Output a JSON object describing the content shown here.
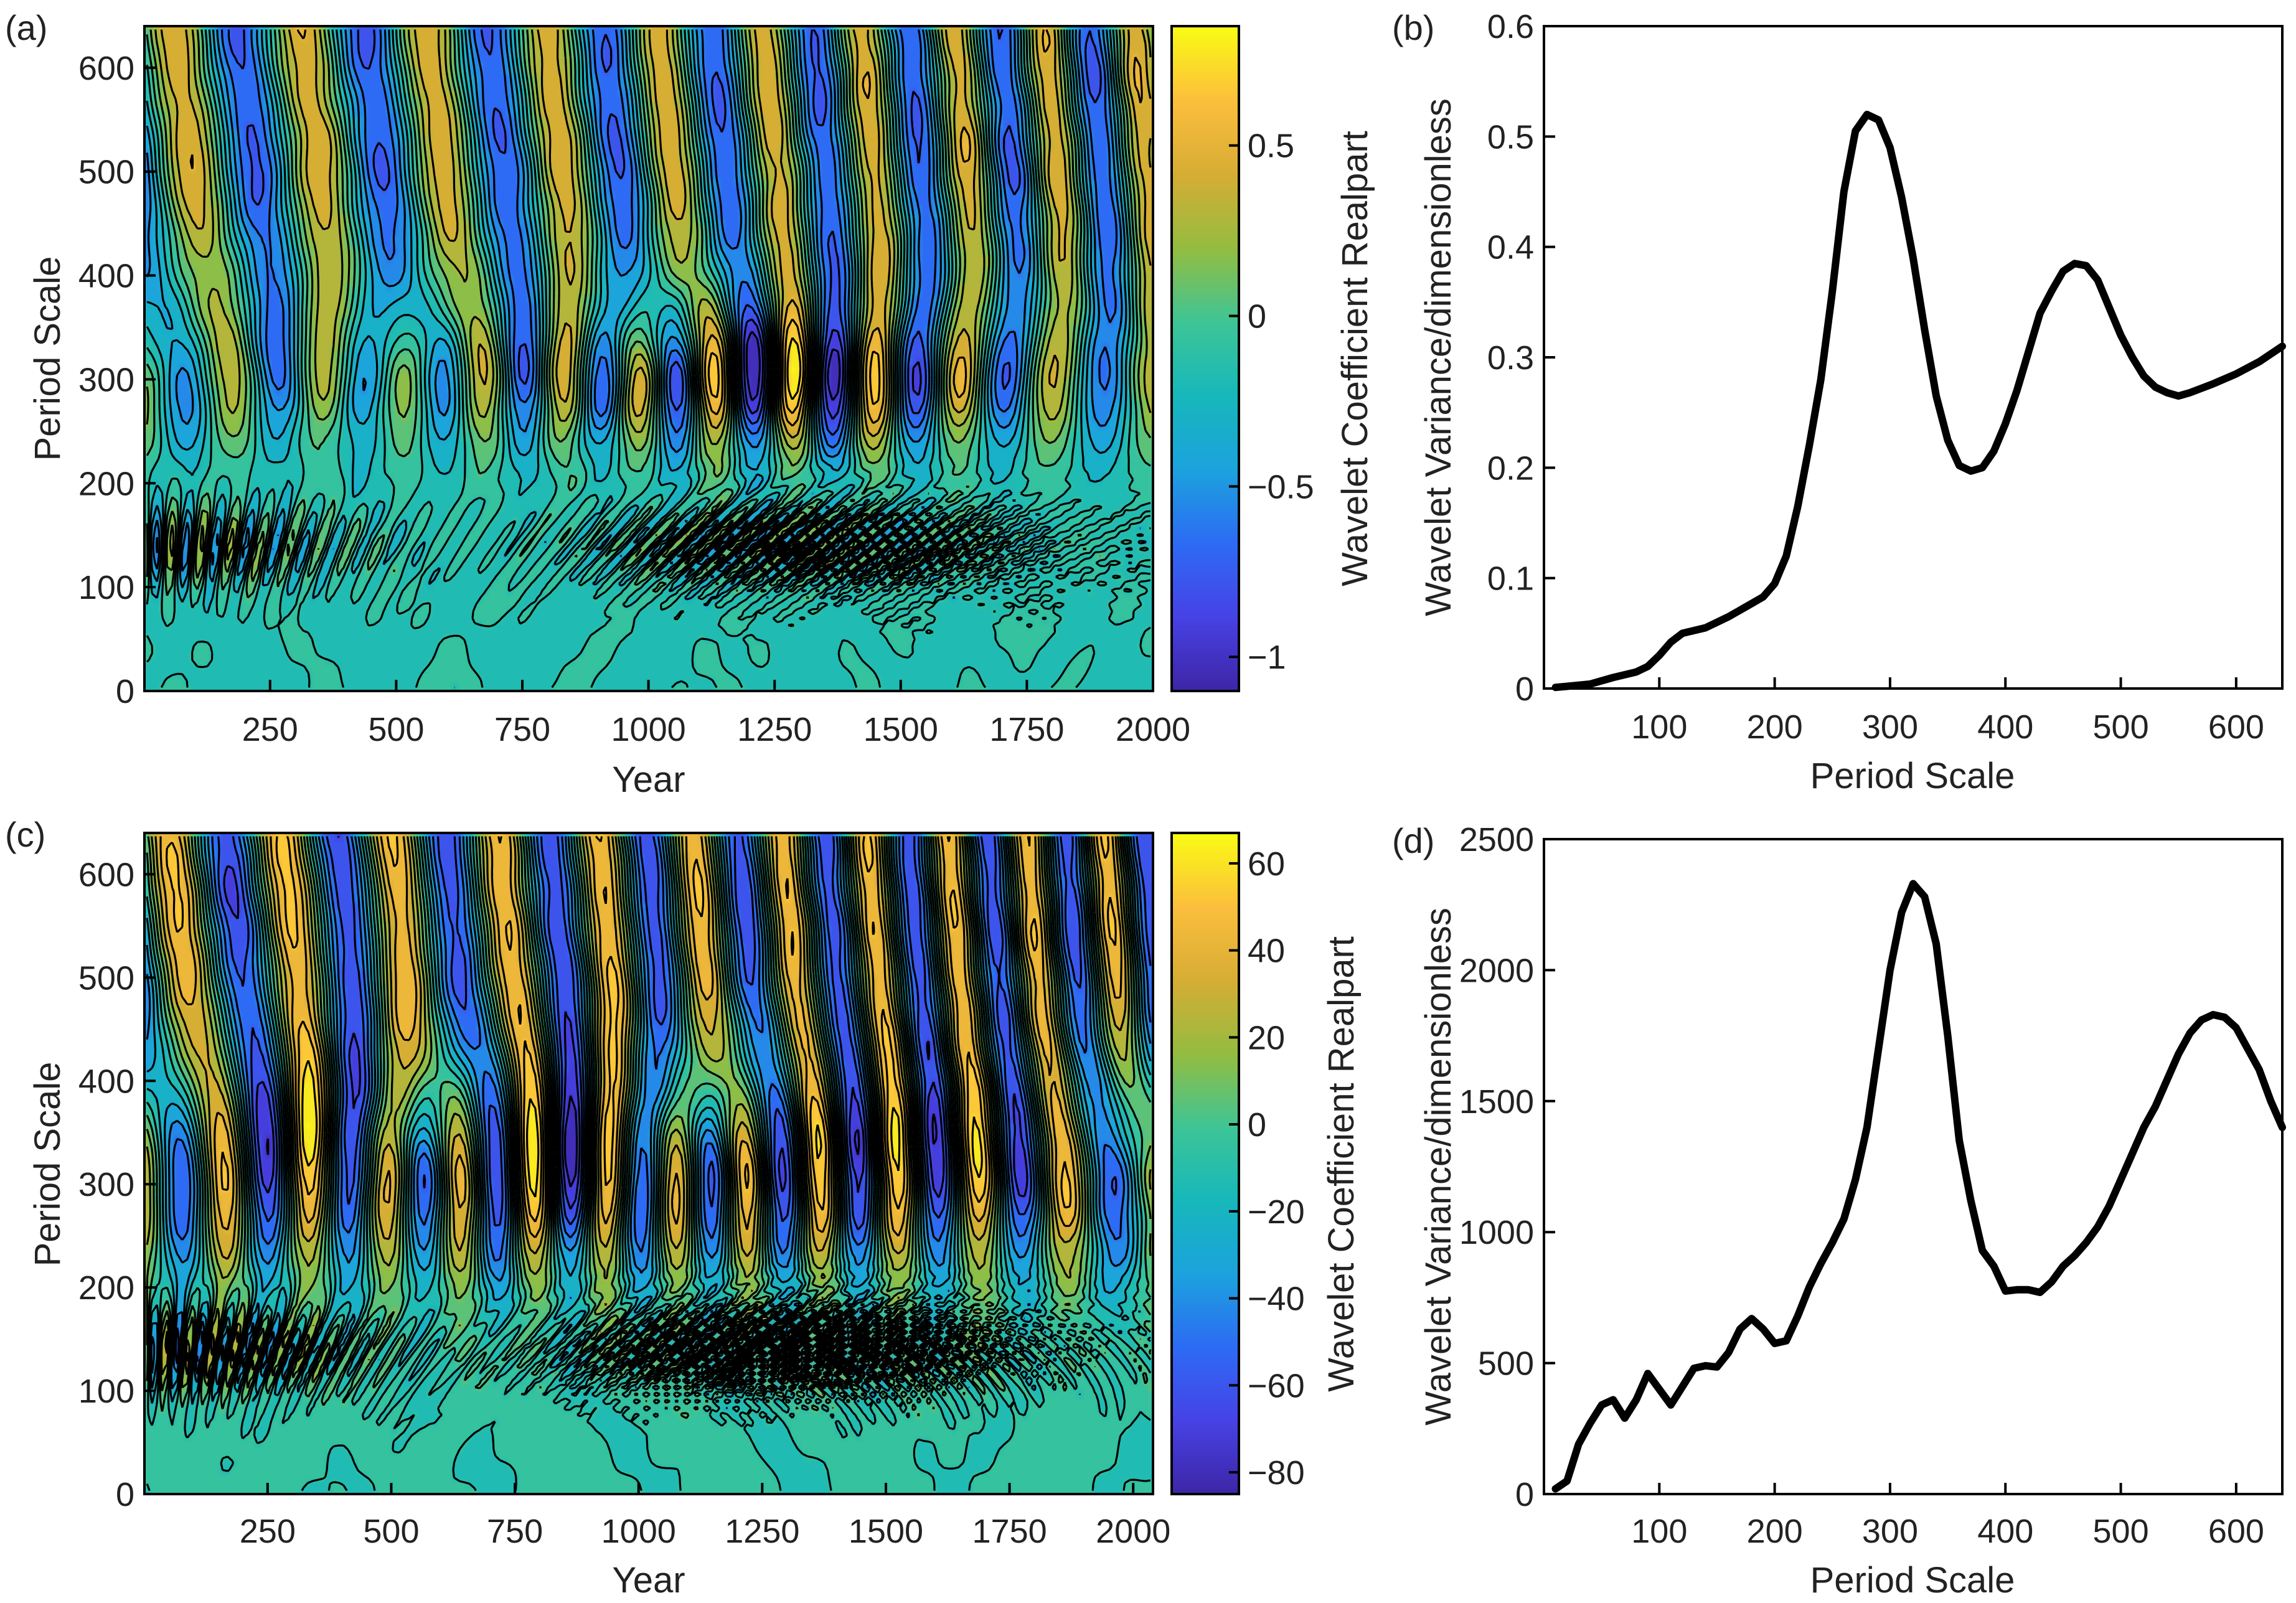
{
  "colors": {
    "colormap": [
      "#3e26a8",
      "#4743e6",
      "#2d6cf4",
      "#1ca3de",
      "#17b8bb",
      "#3ec596",
      "#94bd40",
      "#d6ad34",
      "#fcbe3d",
      "#f9fb15"
    ],
    "line": "#000000",
    "background": "#ffffff"
  },
  "chart_data": [
    {
      "id": "a",
      "panel_label": "(a)",
      "type": "heatmap",
      "xlabel": "Year",
      "ylabel": "Period Scale",
      "xlim": [
        1,
        2000
      ],
      "ylim": [
        0,
        640
      ],
      "xticks": [
        "250",
        "500",
        "750",
        "1000",
        "1250",
        "1500",
        "1750",
        "2000"
      ],
      "xtick_values": [
        250,
        500,
        750,
        1000,
        1250,
        1500,
        1750,
        2000
      ],
      "yticks": [
        "0",
        "100",
        "200",
        "300",
        "400",
        "500",
        "600"
      ],
      "ytick_values": [
        0,
        100,
        200,
        300,
        400,
        500,
        600
      ],
      "colorbar": {
        "label": "Wavelet Coefficient Realpart",
        "range": [
          -1.1,
          0.85
        ],
        "ticks": [
          "0.5",
          "0",
          "−0.5",
          "−1"
        ],
        "tick_values": [
          0.5,
          0,
          -0.5,
          -1
        ]
      },
      "field": {
        "band_center": 300,
        "band_width": 75,
        "band_peak_year": 1300,
        "band_amplitude_edge": 0.45,
        "band_amplitude_peak": 1.0,
        "band_period": 190,
        "upper_period": 230,
        "upper_amplitude": 0.7,
        "low_period": 42,
        "low_amplitude": 0.55
      }
    },
    {
      "id": "b",
      "panel_label": "(b)",
      "type": "line",
      "xlabel": "Period Scale",
      "ylabel": "Wavelet Variance/dimensionless",
      "xlim": [
        0,
        640
      ],
      "ylim": [
        0,
        0.6
      ],
      "xticks": [
        "100",
        "200",
        "300",
        "400",
        "500",
        "600"
      ],
      "xtick_values": [
        100,
        200,
        300,
        400,
        500,
        600
      ],
      "yticks": [
        "0",
        "0.1",
        "0.2",
        "0.3",
        "0.4",
        "0.5",
        "0.6"
      ],
      "ytick_values": [
        0,
        0.1,
        0.2,
        0.3,
        0.4,
        0.5,
        0.6
      ],
      "x": [
        10,
        20,
        40,
        60,
        80,
        90,
        100,
        110,
        120,
        140,
        160,
        180,
        190,
        200,
        210,
        220,
        230,
        240,
        250,
        260,
        270,
        280,
        290,
        300,
        310,
        320,
        330,
        340,
        350,
        360,
        370,
        380,
        390,
        400,
        410,
        420,
        430,
        440,
        450,
        460,
        470,
        480,
        490,
        500,
        510,
        520,
        530,
        540,
        550,
        560,
        570,
        580,
        600,
        620,
        640
      ],
      "y": [
        0.001,
        0.002,
        0.004,
        0.01,
        0.015,
        0.02,
        0.03,
        0.042,
        0.05,
        0.055,
        0.065,
        0.077,
        0.083,
        0.095,
        0.12,
        0.165,
        0.22,
        0.28,
        0.36,
        0.45,
        0.505,
        0.52,
        0.515,
        0.49,
        0.445,
        0.39,
        0.325,
        0.265,
        0.225,
        0.202,
        0.197,
        0.2,
        0.215,
        0.24,
        0.27,
        0.305,
        0.34,
        0.36,
        0.378,
        0.385,
        0.383,
        0.37,
        0.345,
        0.32,
        0.3,
        0.283,
        0.273,
        0.268,
        0.265,
        0.268,
        0.272,
        0.276,
        0.285,
        0.296,
        0.31
      ]
    },
    {
      "id": "c",
      "panel_label": "(c)",
      "type": "heatmap",
      "xlabel": "Year",
      "ylabel": "Period Scale",
      "xlim": [
        1,
        2040
      ],
      "ylim": [
        0,
        640
      ],
      "xticks": [
        "250",
        "500",
        "750",
        "1000",
        "1250",
        "1500",
        "1750",
        "2000"
      ],
      "xtick_values": [
        250,
        500,
        750,
        1000,
        1250,
        1500,
        1750,
        2000
      ],
      "yticks": [
        "0",
        "100",
        "200",
        "300",
        "400",
        "500",
        "600"
      ],
      "ytick_values": [
        0,
        100,
        200,
        300,
        400,
        500,
        600
      ],
      "colorbar": {
        "label": "Wavelet Coefficient Realpart",
        "range": [
          -85,
          67
        ],
        "ticks": [
          "60",
          "40",
          "20",
          "0",
          "−20",
          "−40",
          "−60",
          "−80"
        ],
        "tick_values": [
          60,
          40,
          20,
          0,
          -20,
          -40,
          -60,
          -80
        ]
      },
      "field": {
        "band_center": 310,
        "band_width": 110,
        "band_peak_year": 1000,
        "band_amplitude_edge": 0.75,
        "band_amplitude_peak": 0.85,
        "band_period": 180,
        "upper_period": 205,
        "upper_amplitude": 0.8,
        "low_period": 30,
        "low_amplitude": 0.65
      }
    },
    {
      "id": "d",
      "panel_label": "(d)",
      "type": "line",
      "xlabel": "Period Scale",
      "ylabel": "Wavelet Variance/dimensionless",
      "xlim": [
        0,
        640
      ],
      "ylim": [
        0,
        2500
      ],
      "xticks": [
        "100",
        "200",
        "300",
        "400",
        "500",
        "600"
      ],
      "xtick_values": [
        100,
        200,
        300,
        400,
        500,
        600
      ],
      "yticks": [
        "0",
        "500",
        "1000",
        "1500",
        "2000",
        "2500"
      ],
      "ytick_values": [
        0,
        500,
        1000,
        1500,
        2000,
        2500
      ],
      "x": [
        10,
        20,
        30,
        40,
        50,
        60,
        70,
        80,
        90,
        100,
        110,
        120,
        130,
        140,
        150,
        160,
        170,
        180,
        190,
        200,
        210,
        220,
        230,
        240,
        250,
        260,
        270,
        280,
        290,
        300,
        310,
        320,
        330,
        340,
        350,
        360,
        370,
        380,
        390,
        400,
        410,
        420,
        430,
        440,
        450,
        460,
        470,
        480,
        490,
        500,
        510,
        520,
        530,
        540,
        550,
        560,
        570,
        580,
        590,
        600,
        610,
        620,
        630,
        640
      ],
      "y": [
        20,
        50,
        190,
        270,
        340,
        360,
        290,
        360,
        460,
        400,
        340,
        410,
        480,
        490,
        485,
        540,
        630,
        670,
        630,
        575,
        585,
        680,
        790,
        880,
        960,
        1050,
        1200,
        1400,
        1700,
        2000,
        2220,
        2330,
        2280,
        2100,
        1750,
        1350,
        1120,
        930,
        870,
        775,
        780,
        780,
        770,
        810,
        870,
        910,
        960,
        1020,
        1100,
        1200,
        1300,
        1400,
        1480,
        1580,
        1680,
        1760,
        1810,
        1830,
        1820,
        1780,
        1700,
        1620,
        1500,
        1400
      ]
    }
  ]
}
